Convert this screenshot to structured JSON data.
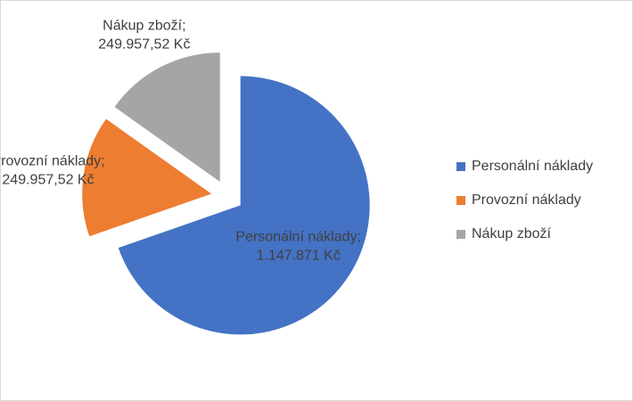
{
  "chart_data": {
    "type": "pie",
    "categories": [
      "Personální náklady",
      "Provozní náklady",
      "Nákup zboží"
    ],
    "values": [
      1147871,
      249957.52,
      249957.52
    ],
    "value_labels": [
      "1.147.871 Kč",
      "249.957,52 Kč",
      "249.957,52 Kč"
    ],
    "label_separator": ";",
    "colors": [
      "#4472c4",
      "#ed7d31",
      "#a5a5a5"
    ],
    "exploded": true,
    "legend": "right"
  }
}
